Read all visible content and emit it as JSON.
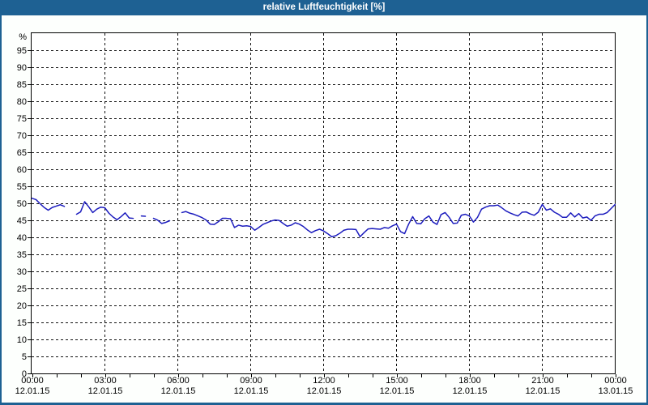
{
  "window": {
    "title": "relative Luftfeuchtigkeit [%]"
  },
  "colors": {
    "titlebar_bg": "#1e6193",
    "titlebar_text": "#ffffff",
    "window_border": "#1e6193",
    "page_bg": "#fdfffd",
    "plot_bg": "#ffffff",
    "plot_border": "#000000",
    "grid": "#111111",
    "axis_text": "#000000",
    "line": "#1c1cbe"
  },
  "chart_data": {
    "type": "line",
    "title": "relative Luftfeuchtigkeit [%]",
    "ylabel": "%",
    "xlabel": "",
    "ylim": [
      0,
      100
    ],
    "grid": "dashed",
    "legend": "none",
    "y_tick_labels": [
      0,
      5,
      10,
      15,
      20,
      25,
      30,
      35,
      40,
      45,
      50,
      55,
      60,
      65,
      70,
      75,
      80,
      85,
      90,
      95
    ],
    "x_minor_tick_hours": 1,
    "x_range_hours": [
      0,
      24
    ],
    "x_labels": [
      {
        "hour": 0,
        "time": "00:00",
        "date": "12.01.15"
      },
      {
        "hour": 3,
        "time": "03:00",
        "date": "12.01.15"
      },
      {
        "hour": 6,
        "time": "06:00",
        "date": "12.01.15"
      },
      {
        "hour": 9,
        "time": "09:00",
        "date": "12.01.15"
      },
      {
        "hour": 12,
        "time": "12:00",
        "date": "12.01.15"
      },
      {
        "hour": 15,
        "time": "15:00",
        "date": "12.01.15"
      },
      {
        "hour": 18,
        "time": "18:00",
        "date": "12.01.15"
      },
      {
        "hour": 21,
        "time": "21:00",
        "date": "12.01.15"
      },
      {
        "hour": 24,
        "time": "00:00",
        "date": "13.01.15"
      }
    ],
    "series": [
      {
        "name": "relative Luftfeuchtigkeit",
        "color": "#1c1cbe",
        "t_start": "12.01.15 00:00",
        "t_step_minutes": 10,
        "values": [
          51.6,
          51.2,
          50.0,
          48.9,
          48.1,
          48.9,
          49.3,
          49.7,
          49.2,
          null,
          null,
          46.9,
          47.6,
          50.6,
          49.1,
          47.4,
          48.4,
          49.0,
          48.8,
          47.2,
          46.1,
          45.3,
          46.2,
          47.3,
          45.8,
          45.7,
          null,
          46.4,
          46.3,
          null,
          45.7,
          45.2,
          44.2,
          44.5,
          45.0,
          null,
          null,
          47.4,
          47.7,
          47.2,
          46.9,
          46.4,
          45.9,
          45.2,
          44.0,
          43.9,
          44.7,
          45.7,
          45.7,
          45.6,
          43.0,
          43.7,
          43.4,
          43.5,
          43.3,
          42.2,
          43.0,
          43.9,
          44.4,
          44.9,
          45.2,
          45.1,
          44.2,
          43.4,
          43.7,
          44.4,
          44.0,
          43.3,
          42.3,
          41.5,
          42.1,
          42.5,
          42.0,
          41.2,
          40.3,
          40.6,
          41.3,
          42.2,
          42.5,
          42.5,
          42.4,
          40.3,
          41.5,
          42.6,
          42.7,
          42.6,
          42.5,
          43.0,
          42.8,
          43.5,
          44.0,
          41.8,
          41.2,
          44.0,
          46.2,
          44.2,
          44.1,
          45.6,
          46.4,
          44.6,
          43.9,
          46.8,
          47.4,
          46.0,
          44.2,
          44.3,
          46.6,
          46.9,
          46.4,
          44.6,
          46.0,
          48.4,
          49.0,
          49.4,
          49.4,
          49.6,
          48.8,
          47.9,
          47.3,
          46.8,
          46.4,
          47.5,
          47.6,
          47.0,
          46.6,
          47.5,
          49.8,
          48.1,
          48.5,
          47.5,
          46.9,
          46.0,
          46.0,
          47.3,
          46.1,
          47.1,
          45.8,
          46.1,
          45.1,
          46.4,
          46.9,
          46.9,
          47.4,
          48.6,
          49.8
        ]
      }
    ]
  }
}
